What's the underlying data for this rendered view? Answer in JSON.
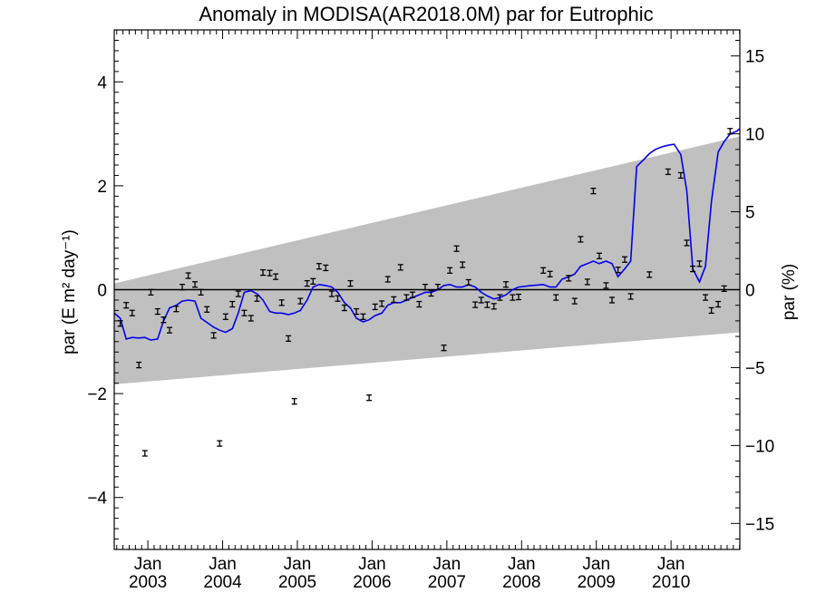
{
  "chart_data": {
    "type": "scatter",
    "title": "Anomaly in MODISA(AR2018.0M) par for Eutrophic",
    "ylabel_left": "par (E m² day⁻¹)",
    "ylabel_right": "par (%)",
    "xlim": [
      2002.55,
      2010.92
    ],
    "ylim_left": [
      -5,
      5
    ],
    "ylim_right": [
      -16.67,
      16.67
    ],
    "yticks_left": [
      -4,
      -2,
      0,
      2,
      4
    ],
    "ytick_labels_left": [
      "−4",
      "−2",
      "0",
      "2",
      "4"
    ],
    "yticks_right": [
      -15,
      -10,
      -5,
      0,
      5,
      10,
      15
    ],
    "ytick_labels_right": [
      "−15",
      "−10",
      "−5",
      "0",
      "5",
      "10",
      "15"
    ],
    "xticks": [
      2003.0,
      2004.0,
      2005.0,
      2006.0,
      2007.0,
      2008.0,
      2009.0,
      2010.0
    ],
    "xtick_labels_top": [
      "Jan",
      "Jan",
      "Jan",
      "Jan",
      "Jan",
      "Jan",
      "Jan",
      "Jan"
    ],
    "xtick_labels_bottom": [
      "2003",
      "2004",
      "2005",
      "2006",
      "2007",
      "2008",
      "2009",
      "2010"
    ],
    "zero_line": 0,
    "band": {
      "color": "#c0c0c0",
      "upper": [
        [
          2002.55,
          0.12
        ],
        [
          2010.92,
          2.95
        ]
      ],
      "lower": [
        [
          2002.55,
          -1.82
        ],
        [
          2010.92,
          -0.82
        ]
      ]
    },
    "points": {
      "color": "#000000",
      "error": 0.03,
      "x": [
        2002.63,
        2002.71,
        2002.79,
        2002.88,
        2002.96,
        2003.04,
        2003.13,
        2003.21,
        2003.29,
        2003.38,
        2003.46,
        2003.54,
        2003.63,
        2003.71,
        2003.79,
        2003.88,
        2003.96,
        2004.04,
        2004.13,
        2004.21,
        2004.29,
        2004.38,
        2004.46,
        2004.54,
        2004.63,
        2004.71,
        2004.79,
        2004.88,
        2004.96,
        2005.04,
        2005.13,
        2005.21,
        2005.29,
        2005.38,
        2005.46,
        2005.54,
        2005.63,
        2005.71,
        2005.79,
        2005.88,
        2005.96,
        2006.04,
        2006.13,
        2006.21,
        2006.29,
        2006.38,
        2006.46,
        2006.54,
        2006.63,
        2006.71,
        2006.79,
        2006.88,
        2006.96,
        2007.04,
        2007.13,
        2007.21,
        2007.29,
        2007.38,
        2007.46,
        2007.54,
        2007.63,
        2007.71,
        2007.79,
        2007.88,
        2007.96,
        2008.29,
        2008.38,
        2008.46,
        2008.63,
        2008.71,
        2008.79,
        2008.88,
        2008.96,
        2009.04,
        2009.13,
        2009.21,
        2009.29,
        2009.38,
        2009.46,
        2009.71,
        2009.96,
        2010.13,
        2010.21,
        2010.29,
        2010.38,
        2010.46,
        2010.54,
        2010.63,
        2010.71,
        2010.79
      ],
      "y": [
        -0.65,
        -0.3,
        -0.45,
        -1.45,
        -3.15,
        -0.05,
        -0.42,
        -0.58,
        -0.78,
        -0.37,
        0.05,
        0.27,
        0.1,
        -0.05,
        -0.38,
        -0.88,
        -2.96,
        -0.52,
        -0.28,
        -0.08,
        -0.45,
        -0.55,
        -0.17,
        0.33,
        0.32,
        0.25,
        -0.25,
        -0.94,
        -2.15,
        -0.22,
        0.12,
        0.16,
        0.45,
        0.42,
        -0.08,
        -0.17,
        -0.35,
        0.12,
        -0.42,
        -0.52,
        -2.08,
        -0.33,
        -0.27,
        0.2,
        -0.19,
        0.43,
        -0.15,
        -0.1,
        -0.28,
        0.05,
        -0.07,
        0.05,
        -1.12,
        0.37,
        0.79,
        0.48,
        0.14,
        -0.29,
        -0.2,
        -0.29,
        -0.32,
        -0.15,
        0.1,
        -0.15,
        -0.14,
        0.37,
        0.3,
        -0.15,
        0.22,
        -0.22,
        0.97,
        0.15,
        1.9,
        0.65,
        0.08,
        -0.2,
        0.38,
        0.58,
        -0.13,
        0.29,
        2.27,
        2.2,
        0.9,
        0.4,
        0.5,
        -0.15,
        -0.4,
        -0.28,
        0.02,
        3.05
      ]
    },
    "line": {
      "color": "#0000ee",
      "x": [
        2002.55,
        2002.63,
        2002.71,
        2002.79,
        2002.88,
        2002.96,
        2003.04,
        2003.13,
        2003.21,
        2003.29,
        2003.38,
        2003.46,
        2003.54,
        2003.63,
        2003.71,
        2003.79,
        2003.88,
        2003.96,
        2004.04,
        2004.13,
        2004.21,
        2004.29,
        2004.38,
        2004.46,
        2004.54,
        2004.63,
        2004.71,
        2004.79,
        2004.88,
        2004.96,
        2005.04,
        2005.13,
        2005.21,
        2005.29,
        2005.38,
        2005.46,
        2005.54,
        2005.63,
        2005.71,
        2005.79,
        2005.88,
        2005.96,
        2006.04,
        2006.13,
        2006.21,
        2006.29,
        2006.38,
        2006.46,
        2006.54,
        2006.63,
        2006.71,
        2006.79,
        2006.88,
        2006.96,
        2007.04,
        2007.13,
        2007.21,
        2007.29,
        2007.38,
        2007.46,
        2007.54,
        2007.63,
        2007.71,
        2007.79,
        2007.88,
        2007.96,
        2008.13,
        2008.29,
        2008.38,
        2008.46,
        2008.54,
        2008.63,
        2008.71,
        2008.79,
        2008.88,
        2008.96,
        2009.04,
        2009.13,
        2009.21,
        2009.29,
        2009.38,
        2009.46,
        2009.54,
        2009.63,
        2009.71,
        2009.79,
        2009.88,
        2009.96,
        2010.04,
        2010.13,
        2010.21,
        2010.29,
        2010.38,
        2010.46,
        2010.54,
        2010.63,
        2010.71,
        2010.79,
        2010.88,
        2010.92
      ],
      "y": [
        -0.45,
        -0.55,
        -0.95,
        -0.92,
        -0.93,
        -0.92,
        -0.97,
        -0.95,
        -0.6,
        -0.35,
        -0.3,
        -0.22,
        -0.2,
        -0.22,
        -0.55,
        -0.63,
        -0.72,
        -0.78,
        -0.82,
        -0.75,
        -0.45,
        -0.05,
        -0.02,
        -0.08,
        -0.2,
        -0.42,
        -0.45,
        -0.45,
        -0.48,
        -0.45,
        -0.4,
        -0.2,
        0.05,
        0.1,
        0.08,
        0.05,
        -0.05,
        -0.25,
        -0.35,
        -0.55,
        -0.62,
        -0.58,
        -0.5,
        -0.45,
        -0.3,
        -0.25,
        -0.25,
        -0.2,
        -0.15,
        -0.1,
        -0.05,
        -0.05,
        0.0,
        0.08,
        0.1,
        0.05,
        0.05,
        0.1,
        0.05,
        -0.05,
        -0.12,
        -0.18,
        -0.15,
        -0.1,
        0.0,
        0.05,
        0.08,
        0.1,
        0.05,
        0.05,
        0.2,
        0.25,
        0.3,
        0.45,
        0.5,
        0.55,
        0.5,
        0.55,
        0.5,
        0.25,
        0.4,
        0.55,
        2.37,
        2.5,
        2.62,
        2.7,
        2.75,
        2.78,
        2.8,
        2.6,
        1.9,
        0.4,
        0.15,
        0.45,
        1.7,
        2.65,
        2.85,
        3.0,
        3.05,
        3.1
      ]
    }
  }
}
